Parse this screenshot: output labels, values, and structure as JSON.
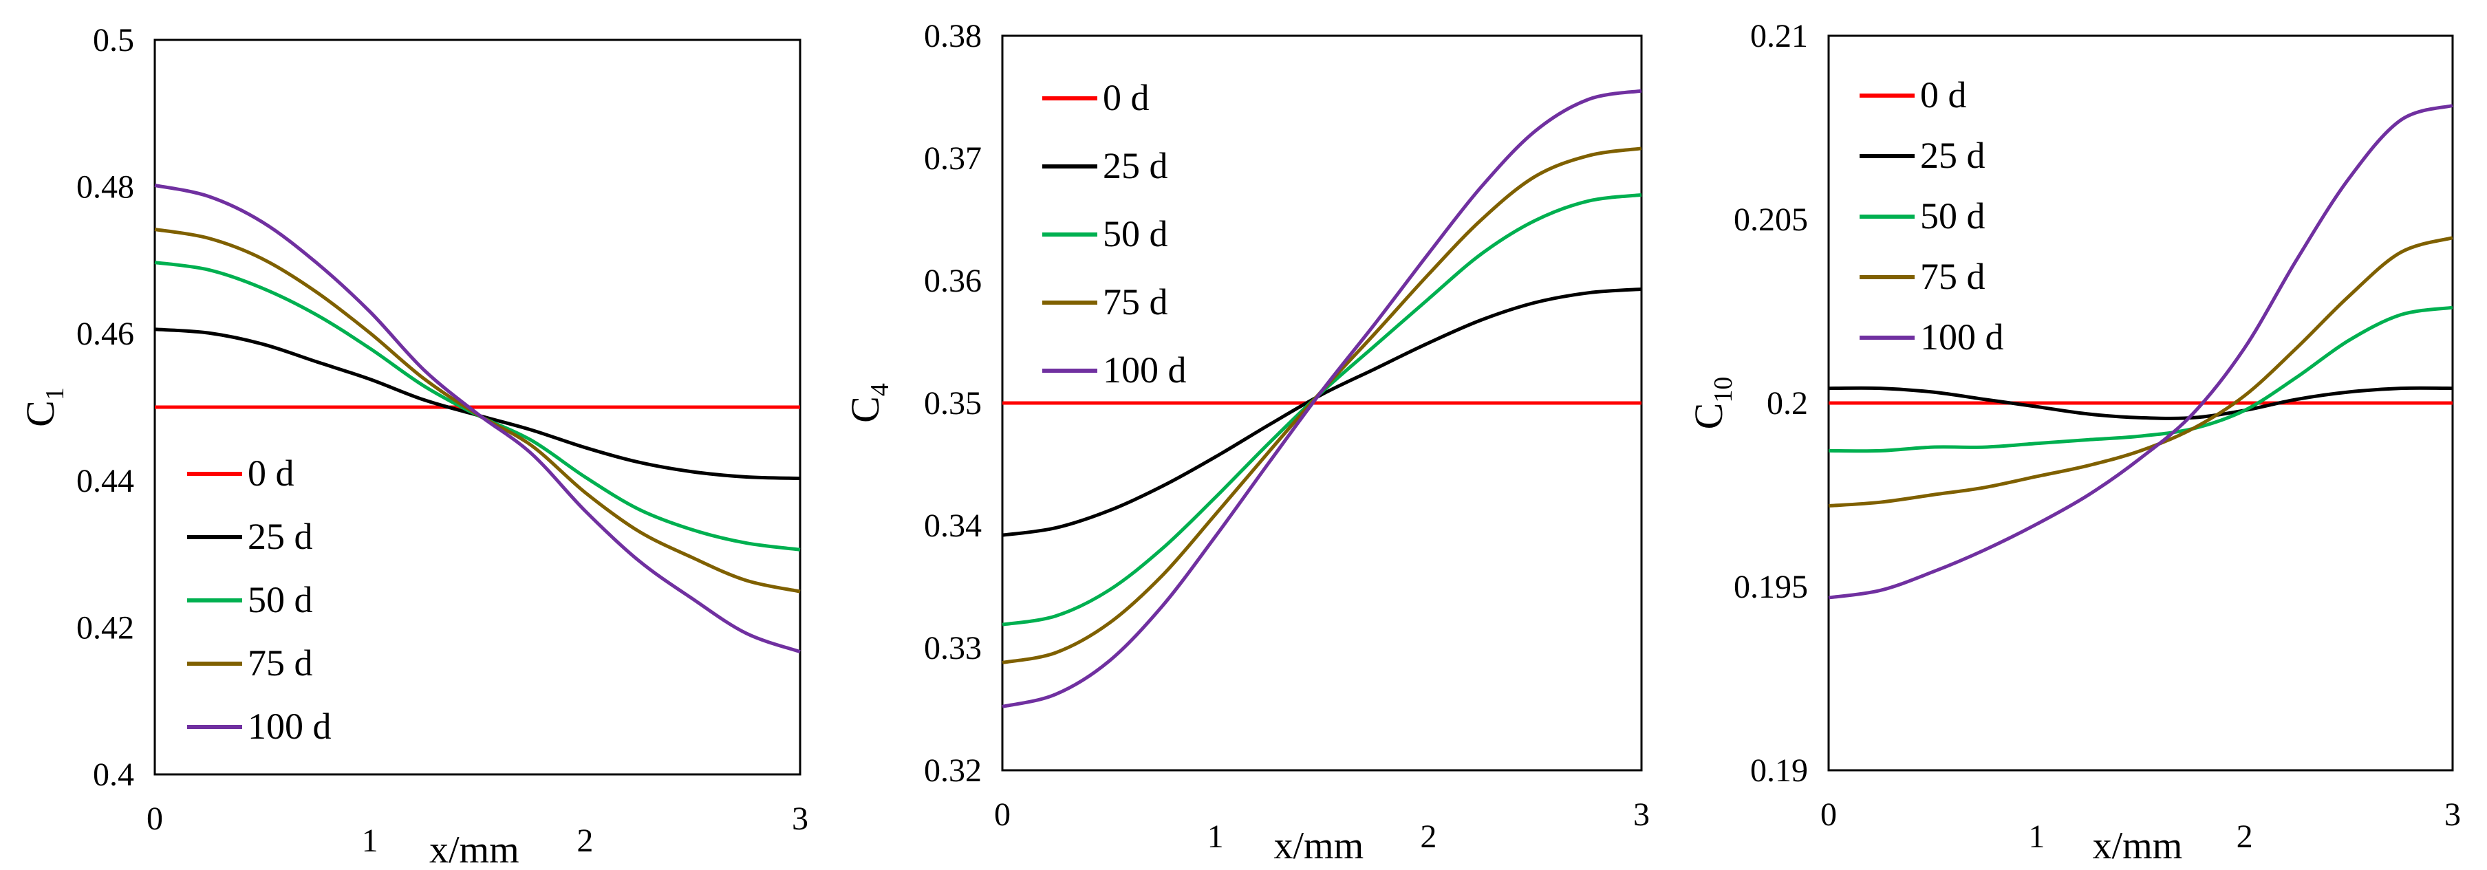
{
  "chart_data": [
    {
      "type": "line",
      "title": "",
      "xlabel": "x/mm",
      "ylabel": "C",
      "ylabel_sub": "1",
      "xlim": [
        0,
        3
      ],
      "ylim": [
        0.4,
        0.5
      ],
      "x_ticks": [
        "0",
        "1",
        "2",
        "3"
      ],
      "y_ticks": [
        "0.4",
        "0.42",
        "0.44",
        "0.46",
        "0.48",
        "0.5"
      ],
      "grid": false,
      "legend_position": "bottom-left",
      "x": [
        0,
        0.25,
        0.5,
        0.75,
        1.0,
        1.25,
        1.5,
        1.75,
        2.0,
        2.25,
        2.5,
        2.75,
        3.0
      ],
      "series": [
        {
          "name": "0 d",
          "color": "#ff0000",
          "values": [
            0.45,
            0.45,
            0.45,
            0.45,
            0.45,
            0.45,
            0.45,
            0.45,
            0.45,
            0.45,
            0.45,
            0.45,
            0.45
          ]
        },
        {
          "name": "25 d",
          "color": "#000000",
          "values": [
            0.4606,
            0.4601,
            0.4586,
            0.4562,
            0.4538,
            0.451,
            0.4489,
            0.4469,
            0.4445,
            0.4425,
            0.4412,
            0.4405,
            0.4403
          ]
        },
        {
          "name": "50 d",
          "color": "#00b050",
          "values": [
            0.4697,
            0.4687,
            0.4662,
            0.4626,
            0.458,
            0.4529,
            0.4489,
            0.4455,
            0.4405,
            0.4361,
            0.4333,
            0.4315,
            0.4306
          ]
        },
        {
          "name": "75 d",
          "color": "#7f6000",
          "values": [
            0.4742,
            0.473,
            0.4702,
            0.4657,
            0.4601,
            0.4539,
            0.449,
            0.4448,
            0.4384,
            0.4331,
            0.4295,
            0.4264,
            0.4249
          ]
        },
        {
          "name": "100 d",
          "color": "#7030a0",
          "values": [
            0.4802,
            0.4787,
            0.4752,
            0.4697,
            0.463,
            0.4551,
            0.4491,
            0.4437,
            0.4359,
            0.4291,
            0.4239,
            0.4192,
            0.4167
          ]
        }
      ]
    },
    {
      "type": "line",
      "title": "",
      "xlabel": "x/mm",
      "ylabel": "C",
      "ylabel_sub": "4",
      "xlim": [
        0,
        3
      ],
      "ylim": [
        0.32,
        0.38
      ],
      "x_ticks": [
        "0",
        "1",
        "2",
        "3"
      ],
      "y_ticks": [
        "0.32",
        "0.33",
        "0.34",
        "0.35",
        "0.36",
        "0.37",
        "0.38"
      ],
      "grid": false,
      "legend_position": "top-left",
      "x": [
        0,
        0.25,
        0.5,
        0.75,
        1.0,
        1.25,
        1.5,
        1.75,
        2.0,
        2.25,
        2.5,
        2.75,
        3.0
      ],
      "series": [
        {
          "name": "0 d",
          "color": "#ff0000",
          "values": [
            0.35,
            0.35,
            0.35,
            0.35,
            0.35,
            0.35,
            0.35,
            0.35,
            0.35,
            0.35,
            0.35,
            0.35,
            0.35
          ]
        },
        {
          "name": "25 d",
          "color": "#000000",
          "values": [
            0.3392,
            0.3398,
            0.3412,
            0.3432,
            0.3456,
            0.3482,
            0.3507,
            0.3528,
            0.3549,
            0.3568,
            0.3582,
            0.359,
            0.3593
          ]
        },
        {
          "name": "50 d",
          "color": "#00b050",
          "values": [
            0.3319,
            0.3326,
            0.3347,
            0.3381,
            0.3423,
            0.3467,
            0.3509,
            0.3547,
            0.3585,
            0.3622,
            0.3649,
            0.3665,
            0.367
          ]
        },
        {
          "name": "75 d",
          "color": "#7f6000",
          "values": [
            0.3288,
            0.3296,
            0.332,
            0.3359,
            0.3409,
            0.346,
            0.351,
            0.3557,
            0.3605,
            0.365,
            0.3685,
            0.3702,
            0.3708
          ]
        },
        {
          "name": "100 d",
          "color": "#7030a0",
          "values": [
            0.3252,
            0.3262,
            0.3289,
            0.3334,
            0.3391,
            0.3451,
            0.351,
            0.3565,
            0.3622,
            0.3677,
            0.3722,
            0.3748,
            0.3755
          ]
        }
      ]
    },
    {
      "type": "line",
      "title": "",
      "xlabel": "x/mm",
      "ylabel": "C",
      "ylabel_sub": "10",
      "xlim": [
        0,
        3
      ],
      "ylim": [
        0.19,
        0.21
      ],
      "x_ticks": [
        "0",
        "1",
        "2",
        "3"
      ],
      "y_ticks": [
        "0.19",
        "0.195",
        "0.2",
        "0.205",
        "0.21"
      ],
      "grid": false,
      "legend_position": "top-left",
      "x": [
        0,
        0.25,
        0.5,
        0.75,
        1.0,
        1.25,
        1.5,
        1.75,
        2.0,
        2.25,
        2.5,
        2.75,
        3.0
      ],
      "series": [
        {
          "name": "0 d",
          "color": "#ff0000",
          "values": [
            0.2,
            0.2,
            0.2,
            0.2,
            0.2,
            0.2,
            0.2,
            0.2,
            0.2,
            0.2,
            0.2,
            0.2,
            0.2
          ]
        },
        {
          "name": "25 d",
          "color": "#000000",
          "values": [
            0.2004,
            0.2004,
            0.2003,
            0.2001,
            0.1999,
            0.1997,
            0.1996,
            0.1996,
            0.1998,
            0.2001,
            0.2003,
            0.2004,
            0.2004
          ]
        },
        {
          "name": "50 d",
          "color": "#00b050",
          "values": [
            0.1987,
            0.1987,
            0.1988,
            0.1988,
            0.1989,
            0.199,
            0.1991,
            0.1993,
            0.1998,
            0.2007,
            0.2017,
            0.2024,
            0.2026
          ]
        },
        {
          "name": "75 d",
          "color": "#7f6000",
          "values": [
            0.1972,
            0.1973,
            0.1975,
            0.1977,
            0.198,
            0.1983,
            0.1987,
            0.1993,
            0.2002,
            0.2015,
            0.2029,
            0.2041,
            0.2045
          ]
        },
        {
          "name": "100 d",
          "color": "#7030a0",
          "values": [
            0.1947,
            0.1949,
            0.1954,
            0.196,
            0.1967,
            0.1975,
            0.1985,
            0.1997,
            0.2015,
            0.2039,
            0.2061,
            0.2077,
            0.2081
          ]
        }
      ]
    }
  ]
}
